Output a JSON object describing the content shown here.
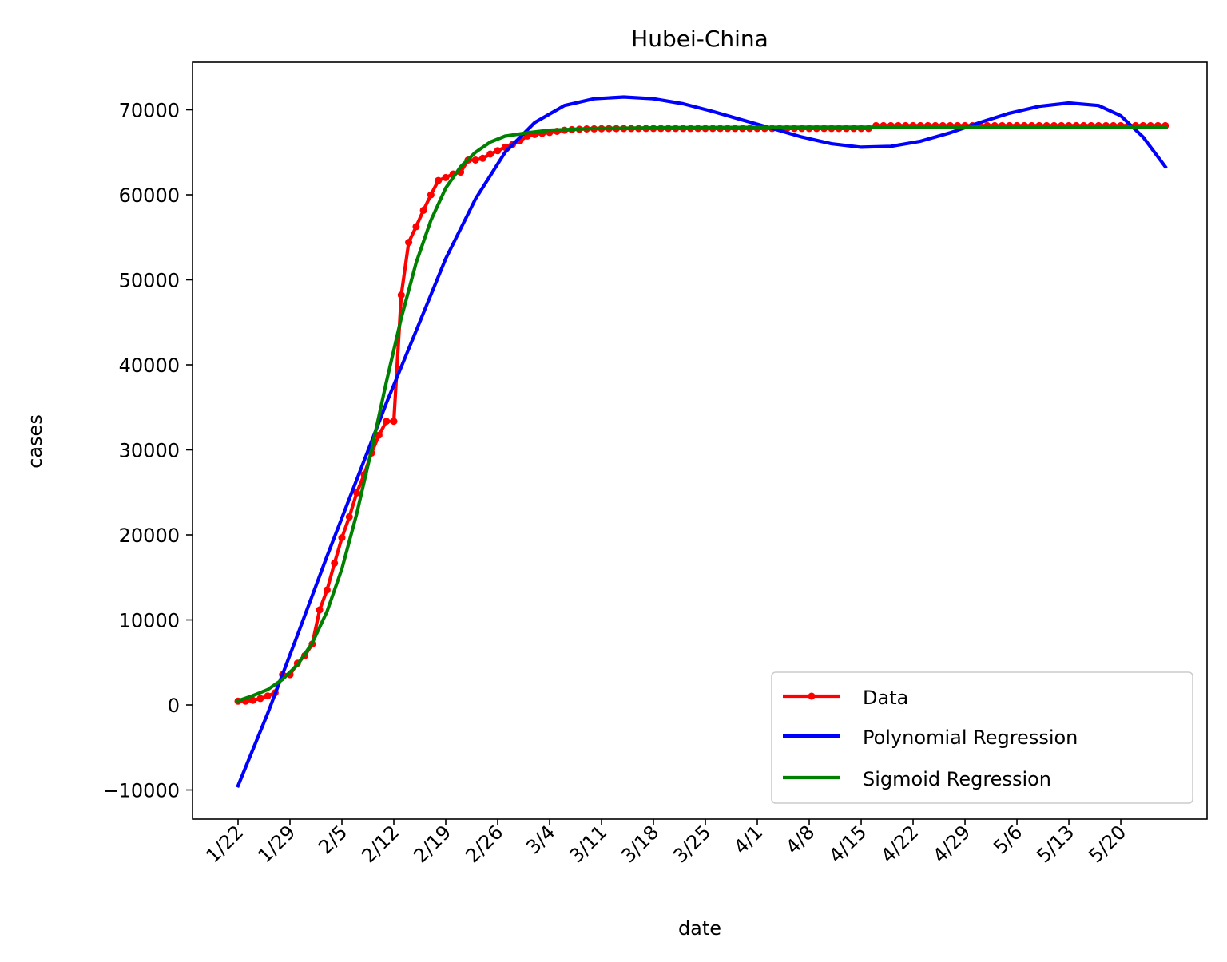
{
  "chart_data": {
    "type": "line",
    "title": "Hubei-China",
    "xlabel": "date",
    "ylabel": "cases",
    "ylim": [
      -11700,
      75700
    ],
    "y_ticks": [
      -10000,
      0,
      10000,
      20000,
      30000,
      40000,
      50000,
      60000,
      70000
    ],
    "y_tick_labels": [
      "−10000",
      "0",
      "10000",
      "20000",
      "30000",
      "40000",
      "50000",
      "60000",
      "70000"
    ],
    "x_tick_labels": [
      "1/22",
      "1/29",
      "2/5",
      "2/12",
      "2/19",
      "2/26",
      "3/4",
      "3/11",
      "3/18",
      "3/25",
      "4/1",
      "4/8",
      "4/15",
      "4/22",
      "4/29",
      "5/6",
      "5/13",
      "5/20"
    ],
    "x_start_date": "1/22",
    "grid": false,
    "legend": {
      "position": "lower-right"
    },
    "series": [
      {
        "name": "Data",
        "color": "#ff0000",
        "marker": true,
        "points": [
          [
            "1/22",
            444
          ],
          [
            "1/23",
            444
          ],
          [
            "1/24",
            549
          ],
          [
            "1/25",
            761
          ],
          [
            "1/26",
            1058
          ],
          [
            "1/27",
            1423
          ],
          [
            "1/28",
            3554
          ],
          [
            "1/29",
            3554
          ],
          [
            "1/30",
            4903
          ],
          [
            "1/31",
            5806
          ],
          [
            "2/1",
            7153
          ],
          [
            "2/2",
            11177
          ],
          [
            "2/3",
            13522
          ],
          [
            "2/4",
            16678
          ],
          [
            "2/5",
            19665
          ],
          [
            "2/6",
            22112
          ],
          [
            "2/7",
            24953
          ],
          [
            "2/8",
            27100
          ],
          [
            "2/9",
            29631
          ],
          [
            "2/10",
            31728
          ],
          [
            "2/11",
            33366
          ],
          [
            "2/12",
            33366
          ],
          [
            "2/13",
            48206
          ],
          [
            "2/14",
            54406
          ],
          [
            "2/15",
            56249
          ],
          [
            "2/16",
            58182
          ],
          [
            "2/17",
            59989
          ],
          [
            "2/18",
            61682
          ],
          [
            "2/19",
            62031
          ],
          [
            "2/20",
            62442
          ],
          [
            "2/21",
            62662
          ],
          [
            "2/22",
            64084
          ],
          [
            "2/23",
            64084
          ],
          [
            "2/24",
            64287
          ],
          [
            "2/25",
            64786
          ],
          [
            "2/26",
            65187
          ],
          [
            "2/27",
            65596
          ],
          [
            "2/28",
            65914
          ],
          [
            "2/29",
            66337
          ],
          [
            "3/1",
            66907
          ],
          [
            "3/2",
            67103
          ],
          [
            "3/3",
            67217
          ],
          [
            "3/4",
            67332
          ],
          [
            "3/5",
            67466
          ],
          [
            "3/6",
            67592
          ],
          [
            "3/7",
            67666
          ],
          [
            "3/8",
            67707
          ],
          [
            "3/9",
            67743
          ],
          [
            "3/10",
            67760
          ],
          [
            "3/11",
            67773
          ],
          [
            "3/12",
            67781
          ],
          [
            "3/13",
            67786
          ],
          [
            "3/14",
            67790
          ],
          [
            "3/15",
            67794
          ],
          [
            "3/16",
            67798
          ],
          [
            "3/17",
            67799
          ],
          [
            "3/18",
            67800
          ],
          [
            "3/19",
            67800
          ],
          [
            "3/20",
            67800
          ],
          [
            "3/21",
            67800
          ],
          [
            "3/22",
            67800
          ],
          [
            "3/23",
            67800
          ],
          [
            "3/24",
            67801
          ],
          [
            "3/25",
            67801
          ],
          [
            "3/26",
            67801
          ],
          [
            "3/27",
            67801
          ],
          [
            "3/28",
            67801
          ],
          [
            "3/29",
            67801
          ],
          [
            "3/30",
            67801
          ],
          [
            "3/31",
            67801
          ],
          [
            "4/1",
            67802
          ],
          [
            "4/2",
            67802
          ],
          [
            "4/3",
            67802
          ],
          [
            "4/4",
            67803
          ],
          [
            "4/5",
            67803
          ],
          [
            "4/6",
            67803
          ],
          [
            "4/7",
            67803
          ],
          [
            "4/8",
            67803
          ],
          [
            "4/9",
            67803
          ],
          [
            "4/10",
            67803
          ],
          [
            "4/11",
            67803
          ],
          [
            "4/12",
            67803
          ],
          [
            "4/13",
            67803
          ],
          [
            "4/14",
            67803
          ],
          [
            "4/15",
            67803
          ],
          [
            "4/16",
            67803
          ],
          [
            "4/17",
            68128
          ],
          [
            "4/18",
            68128
          ],
          [
            "4/19",
            68128
          ],
          [
            "4/20",
            68128
          ],
          [
            "4/21",
            68128
          ],
          [
            "4/22",
            68128
          ],
          [
            "4/23",
            68128
          ],
          [
            "4/24",
            68128
          ],
          [
            "4/25",
            68128
          ],
          [
            "4/26",
            68128
          ],
          [
            "4/27",
            68128
          ],
          [
            "4/28",
            68128
          ],
          [
            "4/29",
            68128
          ],
          [
            "4/30",
            68128
          ],
          [
            "5/1",
            68128
          ],
          [
            "5/2",
            68128
          ],
          [
            "5/3",
            68128
          ],
          [
            "5/4",
            68128
          ],
          [
            "5/5",
            68128
          ],
          [
            "5/6",
            68128
          ],
          [
            "5/7",
            68128
          ],
          [
            "5/8",
            68128
          ],
          [
            "5/9",
            68128
          ],
          [
            "5/10",
            68128
          ],
          [
            "5/11",
            68128
          ],
          [
            "5/12",
            68128
          ],
          [
            "5/13",
            68128
          ],
          [
            "5/14",
            68128
          ],
          [
            "5/15",
            68128
          ],
          [
            "5/16",
            68128
          ],
          [
            "5/17",
            68128
          ],
          [
            "5/18",
            68128
          ],
          [
            "5/19",
            68128
          ],
          [
            "5/20",
            68128
          ],
          [
            "5/21",
            68128
          ],
          [
            "5/22",
            68128
          ],
          [
            "5/23",
            68128
          ],
          [
            "5/24",
            68128
          ],
          [
            "5/25",
            68128
          ],
          [
            "5/26",
            68128
          ]
        ]
      },
      {
        "name": "Polynomial Regression",
        "color": "#0000ff",
        "marker": false,
        "points": [
          [
            "1/22",
            -9500
          ],
          [
            "1/26",
            -1000
          ],
          [
            "1/30",
            8200
          ],
          [
            "2/3",
            17500
          ],
          [
            "2/7",
            26500
          ],
          [
            "2/11",
            35500
          ],
          [
            "2/15",
            44000
          ],
          [
            "2/19",
            52500
          ],
          [
            "2/23",
            59500
          ],
          [
            "2/27",
            65000
          ],
          [
            "3/2",
            68500
          ],
          [
            "3/6",
            70500
          ],
          [
            "3/10",
            71300
          ],
          [
            "3/14",
            71500
          ],
          [
            "3/18",
            71300
          ],
          [
            "3/22",
            70700
          ],
          [
            "3/26",
            69800
          ],
          [
            "3/30",
            68800
          ],
          [
            "4/3",
            67800
          ],
          [
            "4/7",
            66800
          ],
          [
            "4/11",
            66000
          ],
          [
            "4/15",
            65600
          ],
          [
            "4/19",
            65700
          ],
          [
            "4/23",
            66300
          ],
          [
            "4/27",
            67300
          ],
          [
            "5/1",
            68500
          ],
          [
            "5/5",
            69600
          ],
          [
            "5/9",
            70400
          ],
          [
            "5/13",
            70800
          ],
          [
            "5/17",
            70500
          ],
          [
            "5/20",
            69300
          ],
          [
            "5/23",
            66800
          ],
          [
            "5/26",
            63300
          ]
        ]
      },
      {
        "name": "Sigmoid Regression",
        "color": "#008000",
        "marker": false,
        "points": [
          [
            "1/22",
            500
          ],
          [
            "1/24",
            1100
          ],
          [
            "1/26",
            1800
          ],
          [
            "1/28",
            3000
          ],
          [
            "1/30",
            4700
          ],
          [
            "2/1",
            7300
          ],
          [
            "2/3",
            11000
          ],
          [
            "2/5",
            16000
          ],
          [
            "2/7",
            22500
          ],
          [
            "2/9",
            30000
          ],
          [
            "2/11",
            38000
          ],
          [
            "2/13",
            45500
          ],
          [
            "2/15",
            52000
          ],
          [
            "2/17",
            57000
          ],
          [
            "2/19",
            60800
          ],
          [
            "2/21",
            63300
          ],
          [
            "2/23",
            65000
          ],
          [
            "2/25",
            66200
          ],
          [
            "2/27",
            66900
          ],
          [
            "3/1",
            67300
          ],
          [
            "3/4",
            67600
          ],
          [
            "3/10",
            67800
          ],
          [
            "3/20",
            67900
          ],
          [
            "4/10",
            67950
          ],
          [
            "5/26",
            67950
          ]
        ]
      }
    ]
  }
}
